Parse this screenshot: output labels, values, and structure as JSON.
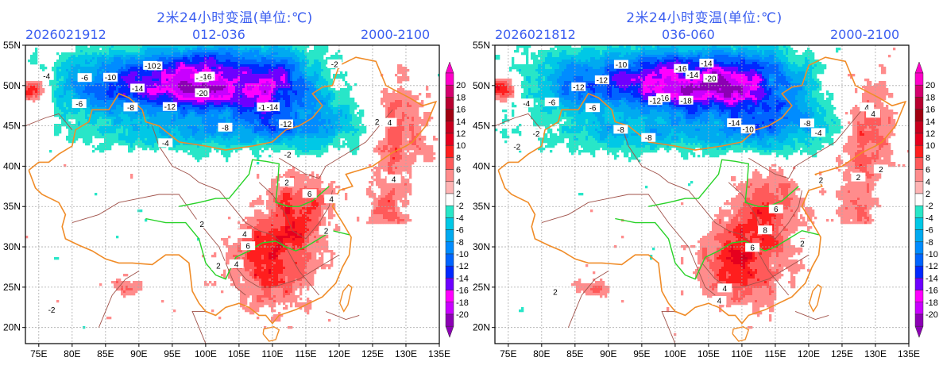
{
  "panels": [
    {
      "title": "2米24小时变温(单位:℃)",
      "init_time": "2026021912",
      "forecast_range": "012-036",
      "time_window": "2000-2100"
    },
    {
      "title": "2米24小时变温(单位:℃)",
      "init_time": "2026021812",
      "forecast_range": "036-060",
      "time_window": "2000-2100"
    }
  ],
  "axes": {
    "lon_ticks": [
      "75E",
      "80E",
      "85E",
      "90E",
      "95E",
      "100E",
      "105E",
      "110E",
      "115E",
      "120E",
      "125E",
      "130E",
      "135E"
    ],
    "lat_ticks": [
      "55N",
      "50N",
      "45N",
      "40N",
      "35N",
      "30N",
      "25N",
      "20N"
    ],
    "lon_range": [
      73,
      135
    ],
    "lat_range": [
      18,
      55
    ]
  },
  "colorbar": {
    "labels": [
      "20",
      "18",
      "16",
      "14",
      "12",
      "10",
      "8",
      "6",
      "4",
      "2",
      "-2",
      "-4",
      "-6",
      "-8",
      "-10",
      "-12",
      "-14",
      "-16",
      "-18",
      "-20"
    ],
    "colors": [
      "#ff00c8",
      "#d4006e",
      "#b80030",
      "#a00010",
      "#c8001e",
      "#e6001e",
      "#ff1e1e",
      "#ff5a5a",
      "#ff8c8c",
      "#ffb4b4",
      "#ffffff",
      "#28e6c8",
      "#00c8e6",
      "#00aaf0",
      "#008cff",
      "#0064ff",
      "#0028ff",
      "#6e00ff",
      "#ff00ff",
      "#c800ff",
      "#8c00b4"
    ],
    "top_arrow_color": "#ff00c8",
    "bottom_arrow_color": "#8c00b4"
  },
  "contour_labels": [
    [
      "-12",
      "-10",
      "-8",
      "-14",
      "-12",
      "-20",
      "-18",
      "-16",
      "-14",
      "-12",
      "-10",
      "-6",
      "-4",
      "-2",
      "2",
      "4",
      "6",
      "-18",
      "-16",
      "-8",
      "-6",
      "-4",
      "-2",
      "2",
      "4",
      "4",
      "2",
      "-2",
      "4",
      "6",
      "2",
      "4",
      "2"
    ],
    [
      "-14",
      "-12",
      "-10",
      "-8",
      "-16",
      "-20",
      "-18",
      "-14",
      "-12",
      "-10",
      "-8",
      "-6",
      "-4",
      "-2",
      "2",
      "4",
      "6",
      "-16",
      "-14",
      "-12",
      "-8",
      "-6",
      "-4",
      "-2",
      "2",
      "4",
      "8",
      "6",
      "4",
      "2",
      "4",
      "2",
      "2"
    ]
  ]
}
